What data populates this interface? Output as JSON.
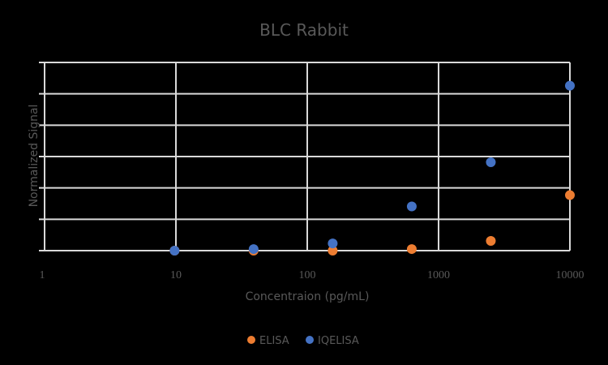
{
  "chart_data": {
    "type": "scatter",
    "title": "BLC Rabbit",
    "xlabel": "Concentraion (pg/mL)",
    "ylabel": "Normalized Signal",
    "x_scale": "log",
    "xlim": [
      1,
      10000
    ],
    "x_ticks": [
      "1",
      "10",
      "100",
      "1000",
      "10000"
    ],
    "ylim": [
      0,
      6
    ],
    "y_ticks_count": 7,
    "y_tick_labels_visible": false,
    "grid": true,
    "legend_position": "bottom",
    "series": [
      {
        "name": "ELISA",
        "color": "#ED7D31",
        "x": [
          9.77,
          39.06,
          156.25,
          625,
          2500,
          10000
        ],
        "y": [
          0.0,
          0.0,
          0.0,
          0.05,
          0.31,
          1.77
        ]
      },
      {
        "name": "IQELISA",
        "color": "#4472C4",
        "x": [
          9.77,
          39.06,
          156.25,
          625,
          2500,
          10000
        ],
        "y": [
          0.0,
          0.05,
          0.23,
          1.41,
          2.82,
          5.26
        ]
      }
    ]
  },
  "legend": {
    "items": [
      {
        "label": "ELISA",
        "color": "#ED7D31"
      },
      {
        "label": "IQELISA",
        "color": "#4472C4"
      }
    ]
  }
}
